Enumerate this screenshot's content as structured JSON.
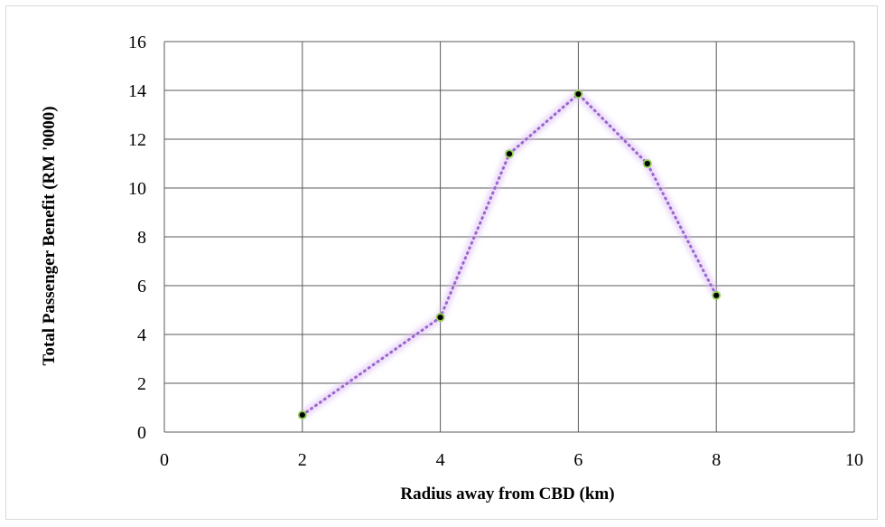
{
  "chart_data": {
    "type": "scatter",
    "title": "",
    "xlabel": "Radius away from CBD (km)",
    "ylabel": "Total Passenger Benefit (RM '0000)",
    "xlim": [
      0,
      10
    ],
    "ylim": [
      0,
      16
    ],
    "x_ticks": [
      0,
      2,
      4,
      6,
      8,
      10
    ],
    "y_ticks": [
      0,
      2,
      4,
      6,
      8,
      10,
      12,
      14,
      16
    ],
    "grid": true,
    "series": [
      {
        "x": [
          2,
          4,
          5,
          6,
          7,
          8
        ],
        "y": [
          0.7,
          4.7,
          11.4,
          13.85,
          11.0,
          5.6
        ],
        "line_style": "dotted",
        "line_color": "#9966cc",
        "glow_color": "#d9b8f2",
        "marker_fill": "#000000",
        "marker_edge": "#8fd14f"
      }
    ]
  }
}
